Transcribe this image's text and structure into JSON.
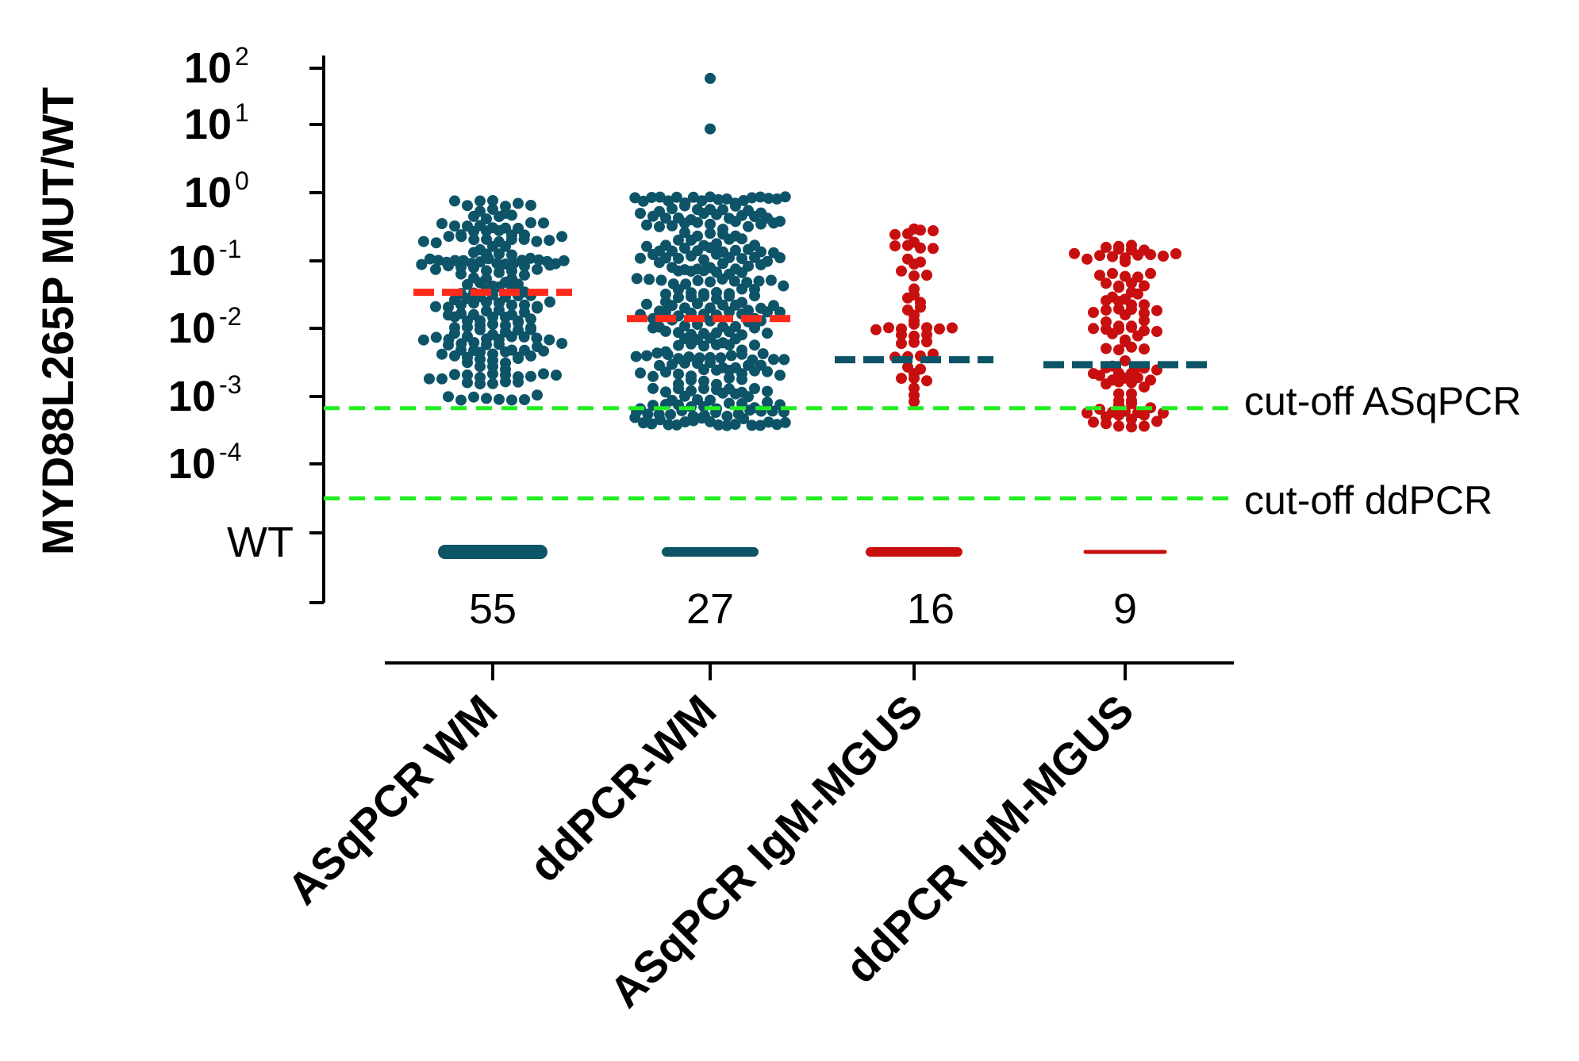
{
  "chart_data": {
    "type": "scatter",
    "subtype": "dot-plot",
    "ylabel": "MYD88L265P MUT/WT",
    "yscale": "log10",
    "ylim_exponents": [
      -4,
      2
    ],
    "yticks": [
      {
        "base": "10",
        "exp": "2",
        "value": 100
      },
      {
        "base": "10",
        "exp": "1",
        "value": 10
      },
      {
        "base": "10",
        "exp": "0",
        "value": 1
      },
      {
        "base": "10",
        "exp": "-1",
        "value": 0.1
      },
      {
        "base": "10",
        "exp": "-2",
        "value": 0.01
      },
      {
        "base": "10",
        "exp": "-3",
        "value": 0.001
      },
      {
        "base": "10",
        "exp": "-4",
        "value": 0.0001
      }
    ],
    "wt_label": "WT",
    "colors": {
      "teal": "#0e5468",
      "red": "#c80f0f",
      "median_red": "#ff2a1a",
      "cutoff_green": "#22ee22",
      "axis": "#000000"
    },
    "cutoffs": [
      {
        "label": "cut-off ASqPCR",
        "value": 0.0007
      },
      {
        "label": "cut-off ddPCR",
        "value": 3e-05
      }
    ],
    "groups": [
      {
        "name": "ASqPCR WM",
        "color": "teal",
        "median": 0.04,
        "median_color": "median_red",
        "wt_count": "55",
        "wt_bar": "thick",
        "n_points": 200,
        "log_range": [
          -3.05,
          0.0
        ],
        "highlights": []
      },
      {
        "name": "ddPCR-WM",
        "color": "teal",
        "median": 0.016,
        "median_color": "median_red",
        "wt_count": "27",
        "wt_bar": "medium",
        "n_points": 290,
        "log_range": [
          -3.42,
          0.05
        ],
        "highlights": [
          70,
          12
        ]
      },
      {
        "name": "ASqPCR IgM-MGUS",
        "color": "red",
        "median": 0.0038,
        "median_color": "teal",
        "wt_count": "16",
        "wt_bar": "medium",
        "n_points": 50,
        "log_range": [
          -3.2,
          -0.35
        ],
        "highlights": []
      },
      {
        "name": "ddPCR IgM-MGUS",
        "color": "red",
        "median": 0.0032,
        "median_color": "teal",
        "wt_count": "9",
        "wt_bar": "thin",
        "n_points": 100,
        "log_range": [
          -3.45,
          -0.6
        ],
        "highlights": []
      }
    ]
  }
}
